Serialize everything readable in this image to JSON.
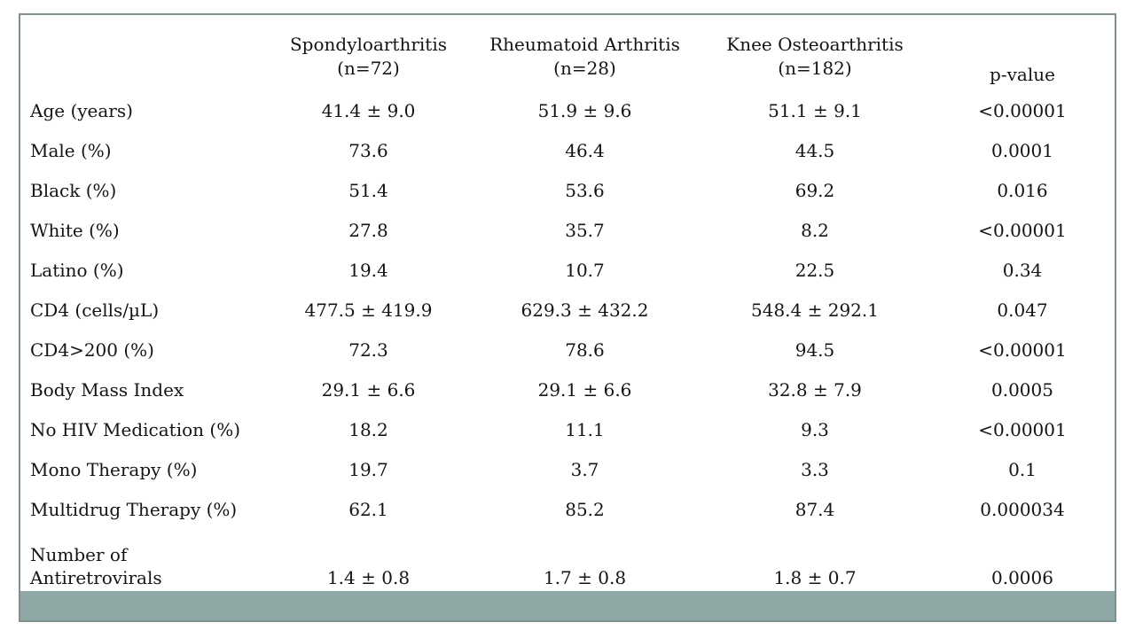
{
  "colors": {
    "bar": "#8FA8A5",
    "border": "#7E918D",
    "text": "#141414"
  },
  "chart_data": {
    "type": "table",
    "title": "",
    "columns": [
      {
        "line1": "Spondyloarthritis",
        "line2": "(n=72)"
      },
      {
        "line1": "Rheumatoid Arthritis",
        "line2": "(n=28)"
      },
      {
        "line1": "Knee Osteoarthritis",
        "line2": "(n=182)"
      },
      {
        "line1": "p-value",
        "line2": ""
      }
    ],
    "rows": [
      {
        "label": "Age (years)",
        "values": [
          "41.4 ± 9.0",
          "51.9 ± 9.6",
          "51.1 ± 9.1",
          "<0.00001"
        ]
      },
      {
        "label": "Male (%)",
        "values": [
          "73.6",
          "46.4",
          "44.5",
          "0.0001"
        ]
      },
      {
        "label": "Black (%)",
        "values": [
          "51.4",
          "53.6",
          "69.2",
          "0.016"
        ]
      },
      {
        "label": "White (%)",
        "values": [
          "27.8",
          "35.7",
          "8.2",
          "<0.00001"
        ]
      },
      {
        "label": "Latino (%)",
        "values": [
          "19.4",
          "10.7",
          "22.5",
          "0.34"
        ]
      },
      {
        "label": "CD4 (cells/µL)",
        "values": [
          "477.5 ± 419.9",
          "629.3 ± 432.2",
          "548.4 ± 292.1",
          "0.047"
        ]
      },
      {
        "label": "CD4>200 (%)",
        "values": [
          "72.3",
          "78.6",
          "94.5",
          "<0.00001"
        ]
      },
      {
        "label": "Body Mass Index",
        "values": [
          "29.1 ± 6.6",
          "29.1 ± 6.6",
          "32.8 ± 7.9",
          "0.0005"
        ]
      },
      {
        "label": "No HIV Medication (%)",
        "values": [
          "18.2",
          "11.1",
          "9.3",
          "<0.00001"
        ]
      },
      {
        "label": "Mono Therapy (%)",
        "values": [
          "19.7",
          "3.7",
          "3.3",
          "0.1"
        ]
      },
      {
        "label": "Multidrug Therapy (%)",
        "values": [
          "62.1",
          "85.2",
          "87.4",
          "0.000034"
        ]
      },
      {
        "label": "Number of",
        "label2": "Antiretrovirals",
        "values": [
          "1.4 ± 0.8",
          "1.7 ± 0.8",
          "1.8 ± 0.7",
          "0.0006"
        ]
      }
    ]
  }
}
